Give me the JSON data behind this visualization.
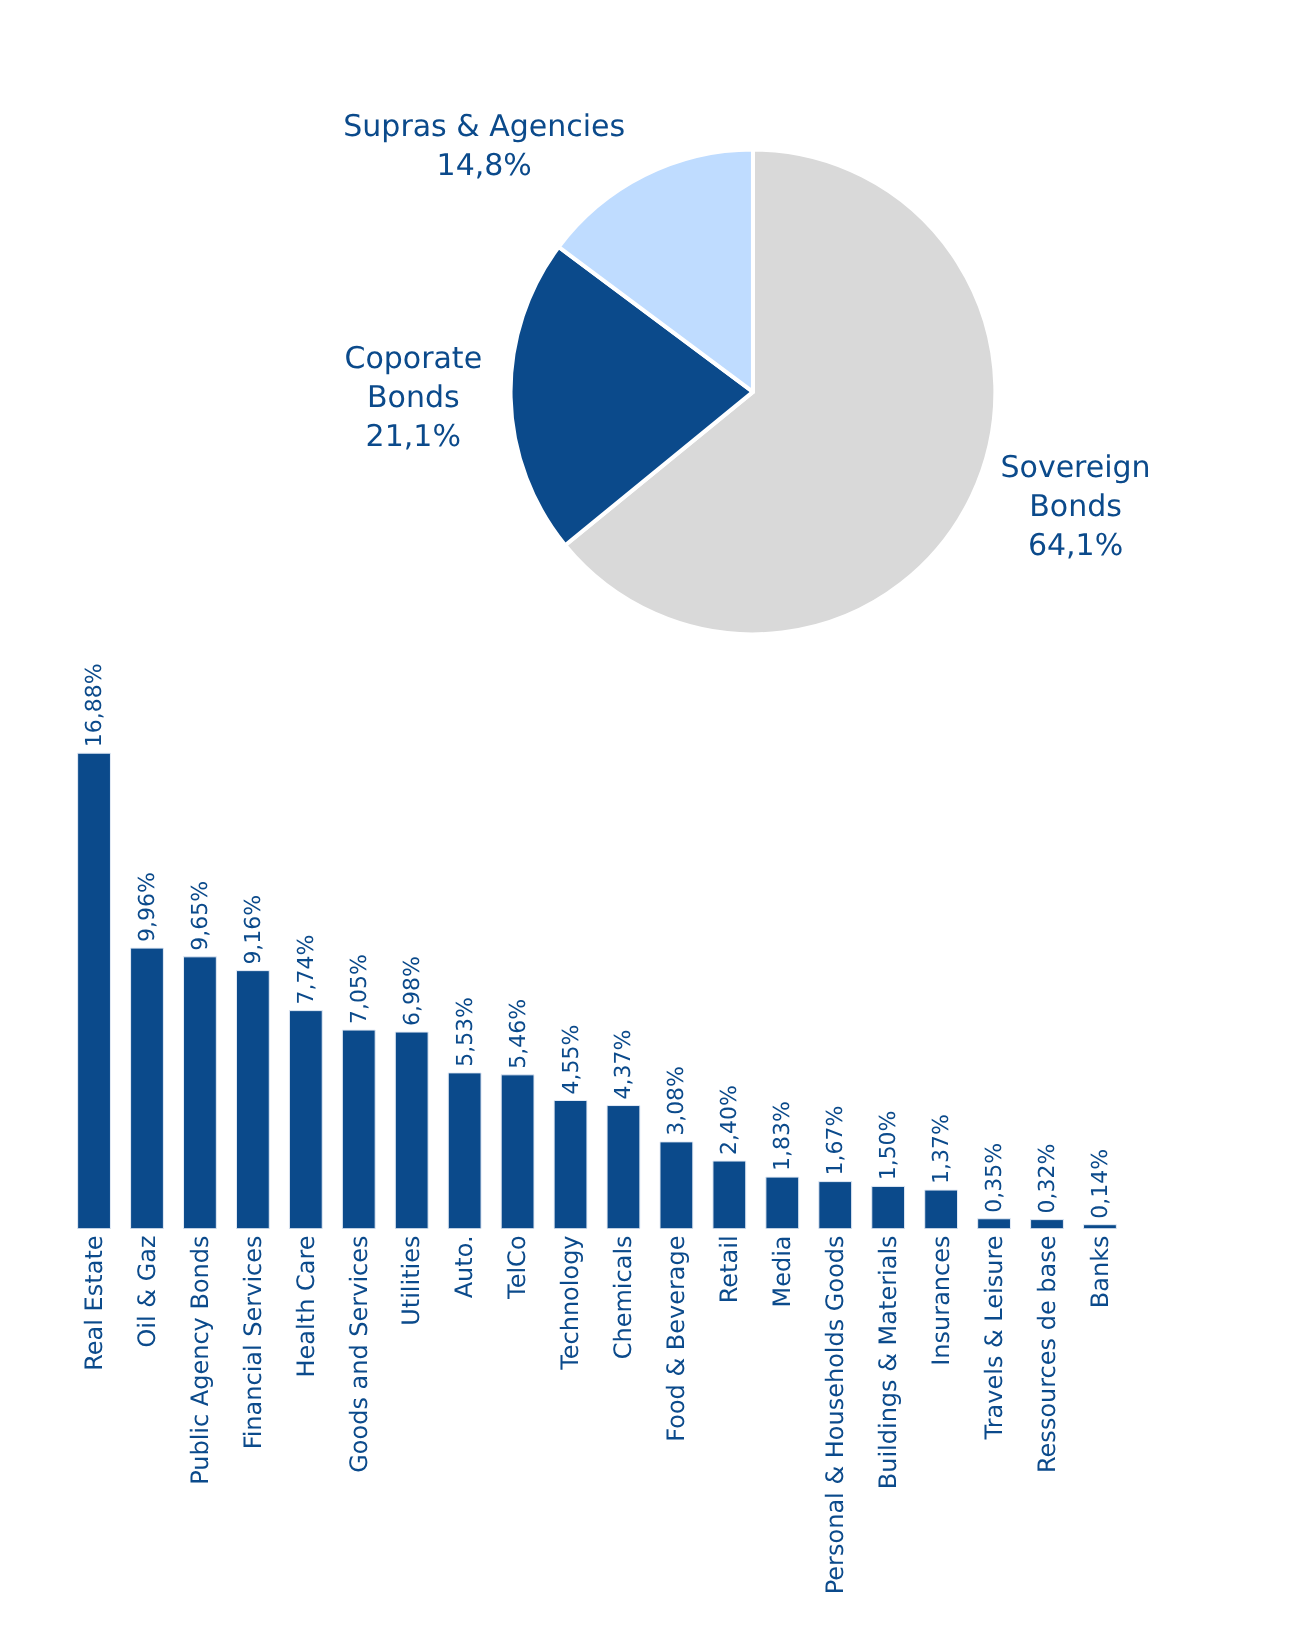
{
  "chart_data": [
    {
      "type": "pie",
      "categories": [
        "Sovereign Bonds",
        "Coporate Bonds",
        "Supras & Agencies"
      ],
      "values": [
        64.1,
        21.1,
        14.8
      ],
      "value_labels": [
        "64,1%",
        "21,1%",
        "14,8%"
      ],
      "colors": [
        "#d9d9d9",
        "#0b4a8b",
        "#bfdcff"
      ]
    },
    {
      "type": "bar",
      "categories": [
        "Real Estate",
        "Oil & Gaz",
        "Public Agency Bonds",
        "Financial Services",
        "Health Care",
        "Goods and Services",
        "Utilities",
        "Auto.",
        "TelCo",
        "Technology",
        "Chemicals",
        "Food & Beverage",
        "Retail",
        "Media",
        "Personal & Households Goods",
        "Buildings & Materials",
        "Insurances",
        "Travels & Leisure",
        "Ressources de base",
        "Banks"
      ],
      "values": [
        16.88,
        9.96,
        9.65,
        9.16,
        7.74,
        7.05,
        6.98,
        5.53,
        5.46,
        4.55,
        4.37,
        3.08,
        2.4,
        1.83,
        1.67,
        1.5,
        1.37,
        0.35,
        0.32,
        0.14
      ],
      "value_labels": [
        "16,88%",
        "9,96%",
        "9,65%",
        "9,16%",
        "7,74%",
        "7,05%",
        "6,98%",
        "5,53%",
        "5,46%",
        "4,55%",
        "4,37%",
        "3,08%",
        "2,40%",
        "1,83%",
        "1,67%",
        "1,50%",
        "1,37%",
        "0,35%",
        "0,32%",
        "0,14%"
      ],
      "color": "#0b4a8b"
    }
  ]
}
